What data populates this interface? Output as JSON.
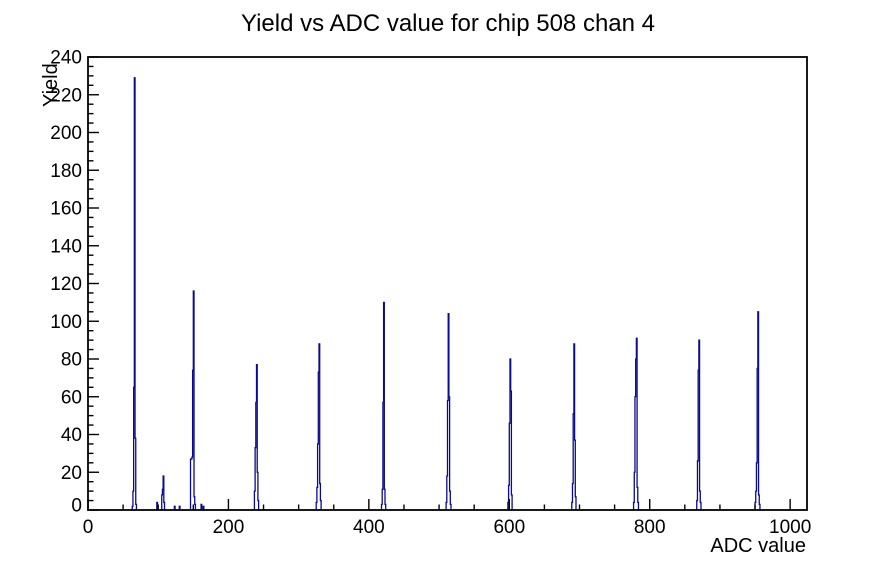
{
  "title": "Yield vs ADC value for chip 508 chan 4",
  "chart_data": {
    "type": "bar",
    "subtype": "step-histogram",
    "title": "Yield vs ADC value for chip 508 chan 4",
    "xlabel": "ADC value",
    "ylabel": "Yield",
    "xlim": [
      0,
      1024
    ],
    "ylim": [
      0,
      240
    ],
    "x_major_ticks": [
      0,
      200,
      400,
      600,
      800,
      1000
    ],
    "x_minor_step": 50,
    "y_major_step": 20,
    "y_minor_step": 5,
    "grid": false,
    "legend": false,
    "line_color": "#0a0a8c",
    "frame_color": "#000000",
    "background": "#ffffff",
    "peaks": [
      {
        "adc": 66,
        "yield": 229
      },
      {
        "adc": 107,
        "yield": 18
      },
      {
        "adc": 150,
        "yield": 116
      },
      {
        "adc": 240,
        "yield": 77
      },
      {
        "adc": 329,
        "yield": 88
      },
      {
        "adc": 421,
        "yield": 110
      },
      {
        "adc": 513,
        "yield": 104
      },
      {
        "adc": 601,
        "yield": 80
      },
      {
        "adc": 692,
        "yield": 88
      },
      {
        "adc": 781,
        "yield": 91
      },
      {
        "adc": 870,
        "yield": 90
      },
      {
        "adc": 954,
        "yield": 105
      }
    ],
    "bins": [
      [
        63,
        2
      ],
      [
        64,
        10
      ],
      [
        65,
        65
      ],
      [
        66,
        229
      ],
      [
        67,
        38
      ],
      [
        68,
        3
      ],
      [
        98,
        4
      ],
      [
        105,
        8
      ],
      [
        106,
        11
      ],
      [
        107,
        18
      ],
      [
        108,
        4
      ],
      [
        123,
        2
      ],
      [
        130,
        2
      ],
      [
        146,
        27
      ],
      [
        147,
        27
      ],
      [
        148,
        28
      ],
      [
        149,
        74
      ],
      [
        150,
        116
      ],
      [
        151,
        7
      ],
      [
        152,
        3
      ],
      [
        161,
        3
      ],
      [
        164,
        2
      ],
      [
        237,
        10
      ],
      [
        238,
        33
      ],
      [
        239,
        57
      ],
      [
        240,
        77
      ],
      [
        241,
        20
      ],
      [
        242,
        5
      ],
      [
        325,
        4
      ],
      [
        326,
        12
      ],
      [
        327,
        35
      ],
      [
        328,
        73
      ],
      [
        329,
        88
      ],
      [
        330,
        14
      ],
      [
        331,
        5
      ],
      [
        418,
        3
      ],
      [
        419,
        11
      ],
      [
        420,
        57
      ],
      [
        421,
        110
      ],
      [
        422,
        11
      ],
      [
        423,
        3
      ],
      [
        510,
        4
      ],
      [
        511,
        18
      ],
      [
        512,
        58
      ],
      [
        513,
        104
      ],
      [
        514,
        60
      ],
      [
        515,
        10
      ],
      [
        516,
        3
      ],
      [
        598,
        4
      ],
      [
        599,
        13
      ],
      [
        600,
        46
      ],
      [
        601,
        80
      ],
      [
        602,
        63
      ],
      [
        603,
        8
      ],
      [
        689,
        4
      ],
      [
        690,
        14
      ],
      [
        691,
        51
      ],
      [
        692,
        88
      ],
      [
        693,
        37
      ],
      [
        694,
        7
      ],
      [
        777,
        4
      ],
      [
        778,
        20
      ],
      [
        779,
        60
      ],
      [
        780,
        80
      ],
      [
        781,
        91
      ],
      [
        782,
        12
      ],
      [
        783,
        4
      ],
      [
        867,
        5
      ],
      [
        868,
        26
      ],
      [
        869,
        74
      ],
      [
        870,
        90
      ],
      [
        871,
        10
      ],
      [
        872,
        4
      ],
      [
        950,
        4
      ],
      [
        951,
        10
      ],
      [
        952,
        25
      ],
      [
        953,
        75
      ],
      [
        954,
        105
      ],
      [
        955,
        8
      ],
      [
        956,
        3
      ]
    ]
  }
}
